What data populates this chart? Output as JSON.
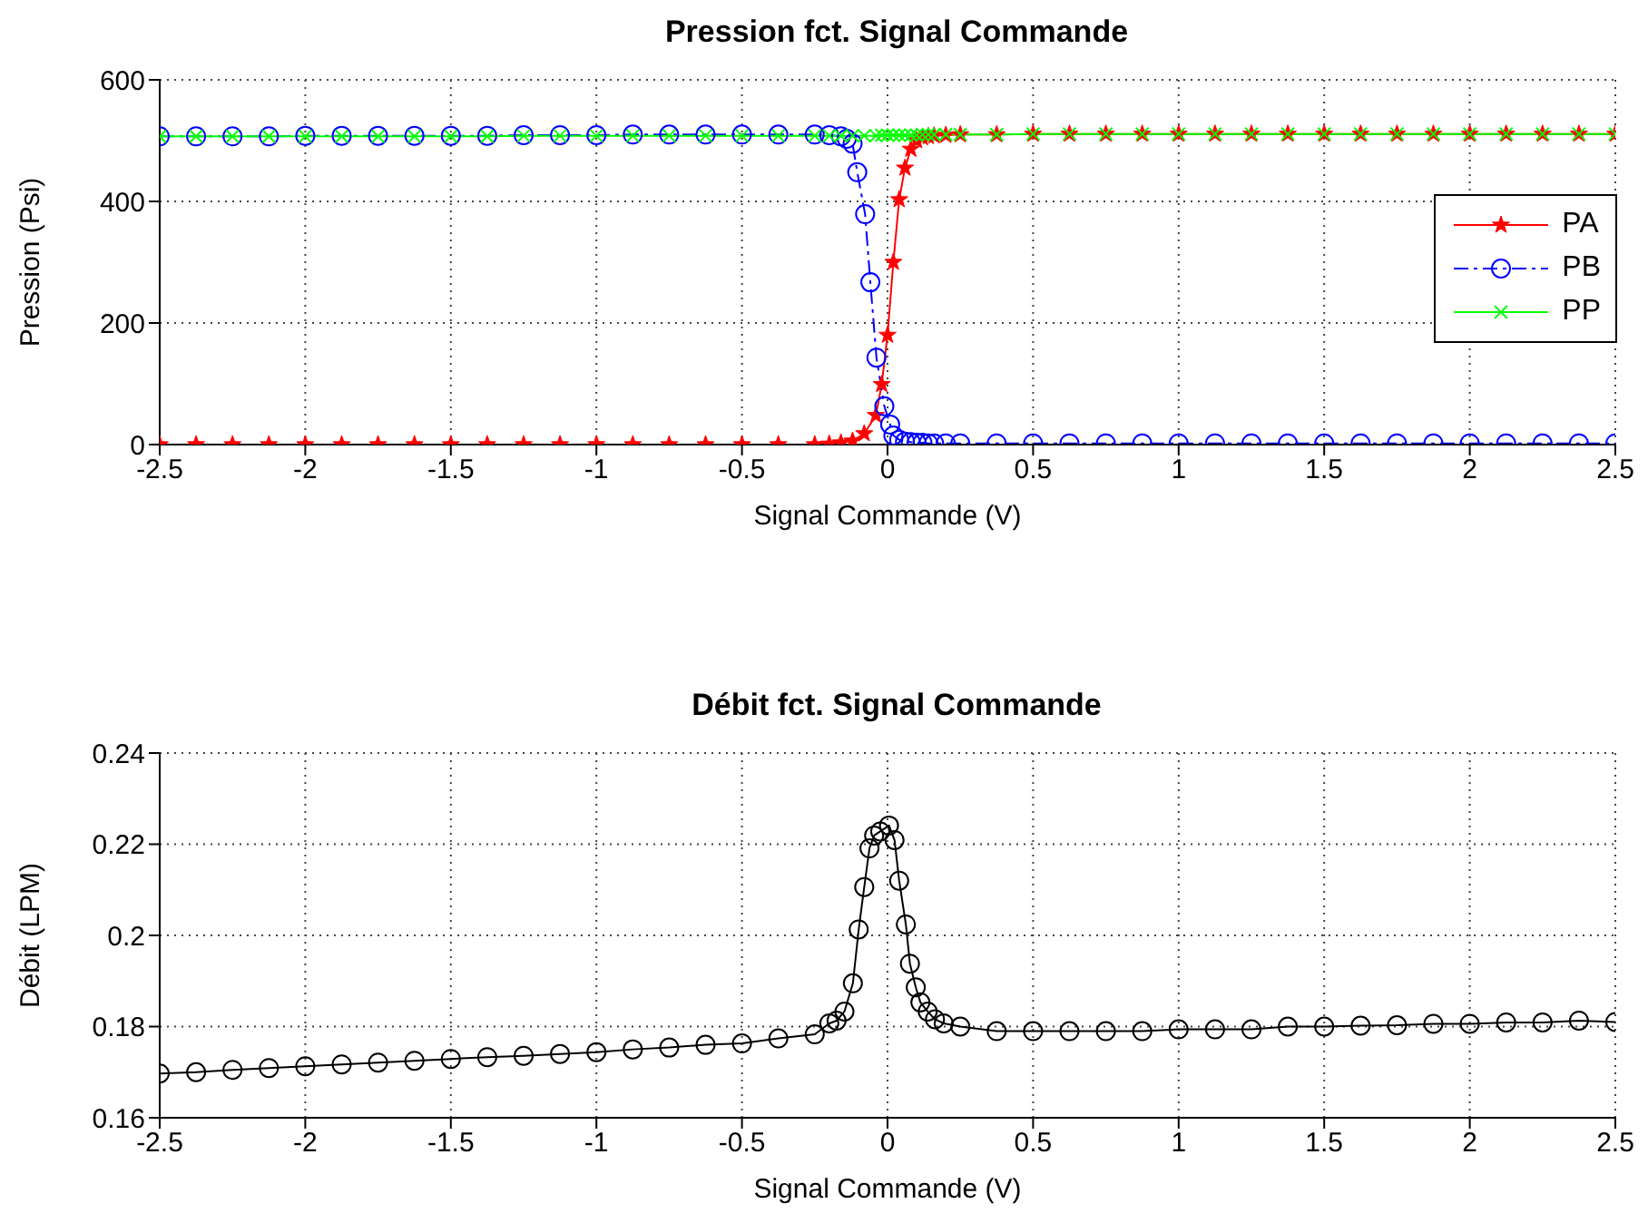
{
  "chart_data": [
    {
      "type": "line",
      "title": "Pression fct. Signal Commande",
      "xlabel": "Signal Commande (V)",
      "ylabel": "Pression (Psi)",
      "xlim": [
        -2.5,
        2.5
      ],
      "xticks": [
        -2.5,
        -2,
        -1.5,
        -1,
        -0.5,
        0,
        0.5,
        1,
        1.5,
        2,
        2.5
      ],
      "ylim": [
        0,
        600
      ],
      "yticks": [
        0,
        200,
        400,
        600
      ],
      "grid": true,
      "legend": "right",
      "series": [
        {
          "name": "PA",
          "color": "#ff0000",
          "marker": "star",
          "line_style": "solid",
          "x": [
            -2.5,
            -2.375,
            -2.25,
            -2.125,
            -2,
            -1.875,
            -1.75,
            -1.625,
            -1.5,
            -1.375,
            -1.25,
            -1.125,
            -1,
            -0.875,
            -0.75,
            -0.625,
            -0.5,
            -0.375,
            -0.25,
            -0.2,
            -0.16,
            -0.12,
            -0.08,
            -0.04,
            -0.02,
            0,
            0.02,
            0.04,
            0.06,
            0.08,
            0.1,
            0.12,
            0.14,
            0.16,
            0.2,
            0.25,
            0.375,
            0.5,
            0.625,
            0.75,
            0.875,
            1,
            1.125,
            1.25,
            1.375,
            1.5,
            1.625,
            1.75,
            1.875,
            2,
            2.125,
            2.25,
            2.375,
            2.5
          ],
          "values": [
            0,
            0,
            0,
            0,
            0,
            0,
            0,
            0,
            0,
            0,
            0,
            0,
            0,
            0,
            0,
            0,
            0,
            0,
            0,
            1,
            3,
            6,
            18,
            48,
            99,
            180,
            300,
            403,
            455,
            486,
            500,
            505,
            507,
            508,
            509,
            510,
            510,
            511,
            511,
            511,
            511,
            511,
            511,
            511,
            511,
            511,
            511,
            511,
            511,
            511,
            511,
            511,
            511,
            511
          ]
        },
        {
          "name": "PB",
          "color": "#0000ff",
          "marker": "circle",
          "line_style": "dashed",
          "x": [
            -2.5,
            -2.375,
            -2.25,
            -2.125,
            -2,
            -1.875,
            -1.75,
            -1.625,
            -1.5,
            -1.375,
            -1.25,
            -1.125,
            -1,
            -0.875,
            -0.75,
            -0.625,
            -0.5,
            -0.375,
            -0.25,
            -0.2,
            -0.16,
            -0.14,
            -0.12,
            -0.104,
            -0.077,
            -0.059,
            -0.038,
            -0.011,
            0.009,
            0.02,
            0.04,
            0.06,
            0.08,
            0.1,
            0.12,
            0.14,
            0.16,
            0.2,
            0.25,
            0.375,
            0.5,
            0.625,
            0.75,
            0.875,
            1,
            1.125,
            1.25,
            1.375,
            1.5,
            1.625,
            1.75,
            1.875,
            2,
            2.125,
            2.25,
            2.375,
            2.5
          ],
          "values": [
            507,
            507,
            507,
            507,
            508,
            508,
            508,
            508,
            508,
            508,
            509,
            509,
            509,
            510,
            510,
            510,
            510,
            510,
            510,
            509,
            507,
            503,
            495,
            448,
            379,
            267,
            143,
            63,
            33,
            15,
            8,
            5,
            4,
            3,
            3,
            2,
            2,
            2,
            2,
            2,
            2,
            2,
            2,
            2,
            2,
            2,
            2,
            2,
            2,
            2,
            2,
            2,
            2,
            2,
            2,
            2,
            2
          ]
        },
        {
          "name": "PP",
          "color": "#00ff00",
          "marker": "cross",
          "line_style": "solid",
          "x": [
            -2.5,
            -2.375,
            -2.25,
            -2.125,
            -2,
            -1.875,
            -1.75,
            -1.625,
            -1.5,
            -1.375,
            -1.25,
            -1.125,
            -1,
            -0.875,
            -0.75,
            -0.625,
            -0.5,
            -0.375,
            -0.25,
            -0.2,
            -0.16,
            -0.12,
            -0.08,
            -0.04,
            -0.02,
            0,
            0.02,
            0.04,
            0.06,
            0.08,
            0.1,
            0.12,
            0.14,
            0.16,
            0.2,
            0.25,
            0.375,
            0.5,
            0.625,
            0.75,
            0.875,
            1,
            1.125,
            1.25,
            1.375,
            1.5,
            1.625,
            1.75,
            1.875,
            2,
            2.125,
            2.25,
            2.375,
            2.5
          ],
          "values": [
            507,
            507,
            507,
            507,
            507,
            507,
            507,
            507,
            507,
            507,
            508,
            508,
            508,
            508,
            508,
            508,
            508,
            508,
            508,
            508,
            508,
            508,
            508,
            508,
            509,
            509,
            509,
            509,
            509,
            509,
            509,
            510,
            510,
            510,
            510,
            510,
            510,
            511,
            511,
            511,
            511,
            511,
            511,
            511,
            511,
            511,
            511,
            511,
            511,
            511,
            511,
            511,
            511,
            511
          ]
        }
      ]
    },
    {
      "type": "line",
      "title": "Débit fct. Signal Commande",
      "xlabel": "Signal Commande (V)",
      "ylabel": "Débit (LPM)",
      "xlim": [
        -2.5,
        2.5
      ],
      "xticks": [
        -2.5,
        -2,
        -1.5,
        -1,
        -0.5,
        0,
        0.5,
        1,
        1.5,
        2,
        2.5
      ],
      "ylim": [
        0.16,
        0.24
      ],
      "yticks": [
        0.16,
        0.18,
        0.2,
        0.22,
        0.24
      ],
      "grid": true,
      "series": [
        {
          "color": "#000000",
          "marker": "circle",
          "line_style": "solid",
          "x": [
            -2.5,
            -2.375,
            -2.25,
            -2.125,
            -2,
            -1.875,
            -1.75,
            -1.625,
            -1.5,
            -1.375,
            -1.25,
            -1.125,
            -1,
            -0.875,
            -0.75,
            -0.625,
            -0.5,
            -0.375,
            -0.25,
            -0.2,
            -0.175,
            -0.148,
            -0.119,
            -0.099,
            -0.08,
            -0.062,
            -0.046,
            -0.025,
            0.005,
            0.024,
            0.04,
            0.063,
            0.077,
            0.097,
            0.113,
            0.138,
            0.163,
            0.193,
            0.25,
            0.375,
            0.5,
            0.625,
            0.75,
            0.875,
            1,
            1.125,
            1.25,
            1.375,
            1.5,
            1.625,
            1.75,
            1.875,
            2,
            2.125,
            2.25,
            2.375,
            2.5
          ],
          "values": [
            0.1697,
            0.17,
            0.1705,
            0.1709,
            0.1713,
            0.1717,
            0.1721,
            0.1725,
            0.1729,
            0.1733,
            0.1736,
            0.174,
            0.1744,
            0.175,
            0.1754,
            0.176,
            0.1763,
            0.1774,
            0.1783,
            0.1807,
            0.1813,
            0.1833,
            0.1895,
            0.2013,
            0.2106,
            0.2191,
            0.2219,
            0.2228,
            0.2241,
            0.2209,
            0.212,
            0.2024,
            0.1938,
            0.1886,
            0.1853,
            0.1833,
            0.1816,
            0.1807,
            0.18,
            0.179,
            0.179,
            0.179,
            0.179,
            0.179,
            0.1794,
            0.1794,
            0.1794,
            0.18,
            0.18,
            0.1802,
            0.1803,
            0.1806,
            0.1806,
            0.1809,
            0.1809,
            0.1813,
            0.181
          ]
        }
      ]
    }
  ]
}
